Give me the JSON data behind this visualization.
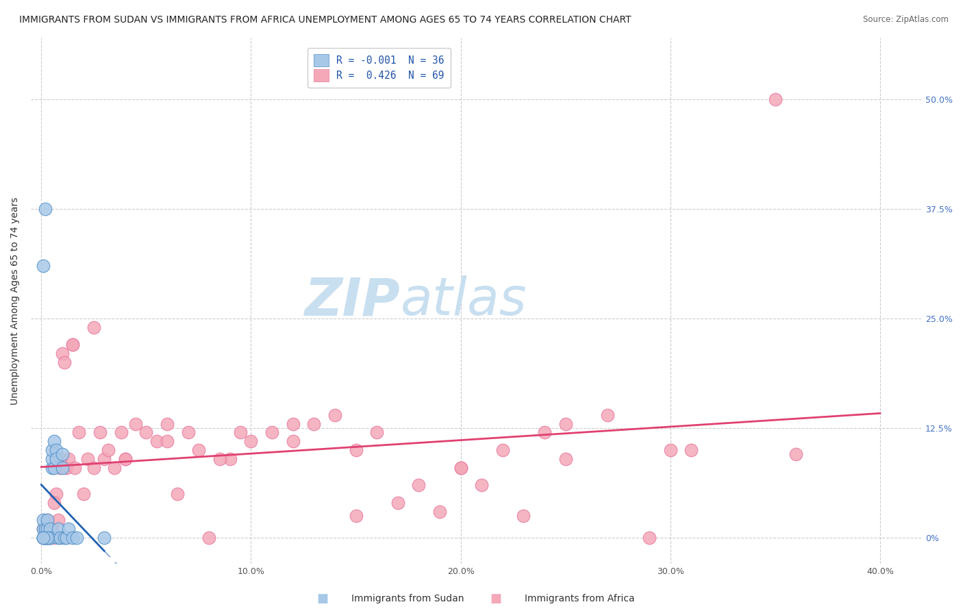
{
  "title": "IMMIGRANTS FROM SUDAN VS IMMIGRANTS FROM AFRICA UNEMPLOYMENT AMONG AGES 65 TO 74 YEARS CORRELATION CHART",
  "source": "Source: ZipAtlas.com",
  "ylabel": "Unemployment Among Ages 65 to 74 years",
  "x_tick_labels": [
    "0.0%",
    "",
    "10.0%",
    "",
    "20.0%",
    "",
    "30.0%",
    "",
    "40.0%"
  ],
  "x_tick_values": [
    0.0,
    0.05,
    0.1,
    0.15,
    0.2,
    0.25,
    0.3,
    0.35,
    0.4
  ],
  "y_tick_labels_right": [
    "0%",
    "12.5%",
    "25.0%",
    "37.5%",
    "50.0%"
  ],
  "y_tick_values": [
    0.0,
    0.125,
    0.25,
    0.375,
    0.5
  ],
  "xlim": [
    -0.005,
    0.42
  ],
  "ylim": [
    -0.03,
    0.57
  ],
  "legend_label_sudan": "Immigrants from Sudan",
  "legend_label_africa": "Immigrants from Africa",
  "color_sudan": "#a8c8e8",
  "color_africa": "#f4a8b8",
  "trendline_sudan_color": "#2060b0",
  "trendline_africa_color": "#e04070",
  "watermark_zip": "ZIP",
  "watermark_atlas": "atlas",
  "watermark_color": "#c8dff0",
  "title_fontsize": 10.0,
  "axis_label_fontsize": 10,
  "tick_fontsize": 9,
  "legend_r_sudan": "R = -0.001",
  "legend_n_sudan": "N = 36",
  "legend_r_africa": "R =  0.426",
  "legend_n_africa": "N = 69",
  "sudan_x": [
    0.001,
    0.001,
    0.001,
    0.002,
    0.002,
    0.002,
    0.003,
    0.003,
    0.003,
    0.003,
    0.004,
    0.004,
    0.004,
    0.005,
    0.005,
    0.005,
    0.006,
    0.006,
    0.007,
    0.007,
    0.008,
    0.008,
    0.009,
    0.01,
    0.01,
    0.011,
    0.012,
    0.013,
    0.015,
    0.017,
    0.002,
    0.001,
    0.001,
    0.003,
    0.03,
    0.001
  ],
  "sudan_y": [
    0.0,
    0.01,
    0.02,
    0.0,
    0.01,
    0.0,
    0.0,
    0.01,
    0.0,
    0.02,
    0.0,
    0.01,
    0.0,
    0.08,
    0.09,
    0.1,
    0.08,
    0.11,
    0.1,
    0.09,
    0.0,
    0.01,
    0.0,
    0.095,
    0.08,
    0.0,
    0.0,
    0.01,
    0.0,
    0.0,
    0.375,
    0.31,
    0.0,
    0.0,
    0.0,
    0.0
  ],
  "africa_x": [
    0.001,
    0.002,
    0.003,
    0.004,
    0.005,
    0.006,
    0.007,
    0.008,
    0.009,
    0.01,
    0.011,
    0.012,
    0.013,
    0.015,
    0.016,
    0.018,
    0.02,
    0.022,
    0.025,
    0.028,
    0.03,
    0.032,
    0.035,
    0.038,
    0.04,
    0.045,
    0.05,
    0.055,
    0.06,
    0.065,
    0.07,
    0.075,
    0.08,
    0.09,
    0.095,
    0.1,
    0.11,
    0.12,
    0.13,
    0.14,
    0.15,
    0.16,
    0.17,
    0.18,
    0.19,
    0.2,
    0.21,
    0.22,
    0.23,
    0.24,
    0.25,
    0.27,
    0.29,
    0.31,
    0.35,
    0.003,
    0.006,
    0.009,
    0.015,
    0.025,
    0.04,
    0.06,
    0.085,
    0.12,
    0.15,
    0.2,
    0.25,
    0.3,
    0.36
  ],
  "africa_y": [
    0.01,
    0.0,
    0.02,
    0.0,
    0.01,
    0.0,
    0.05,
    0.02,
    0.08,
    0.21,
    0.2,
    0.08,
    0.09,
    0.22,
    0.08,
    0.12,
    0.05,
    0.09,
    0.08,
    0.12,
    0.09,
    0.1,
    0.08,
    0.12,
    0.09,
    0.13,
    0.12,
    0.11,
    0.13,
    0.05,
    0.12,
    0.1,
    0.0,
    0.09,
    0.12,
    0.11,
    0.12,
    0.11,
    0.13,
    0.14,
    0.1,
    0.12,
    0.04,
    0.06,
    0.03,
    0.08,
    0.06,
    0.1,
    0.025,
    0.12,
    0.09,
    0.14,
    0.0,
    0.1,
    0.5,
    0.0,
    0.04,
    0.09,
    0.22,
    0.24,
    0.09,
    0.11,
    0.09,
    0.13,
    0.025,
    0.08,
    0.13,
    0.1,
    0.095
  ]
}
